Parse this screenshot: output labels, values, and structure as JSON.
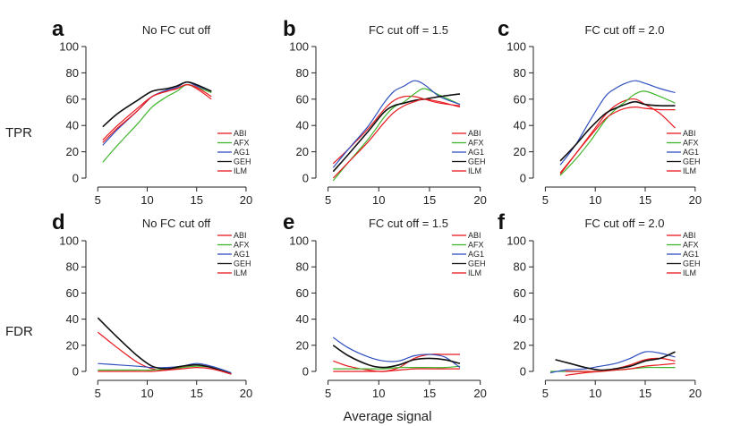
{
  "figure": {
    "row_labels": [
      "TPR",
      "FDR"
    ],
    "shared_xlabel": "Average signal"
  },
  "colors": {
    "ABI": "#e8191e",
    "AFX": "#3fb52c",
    "AG1": "#2f4fbf",
    "GEH": "#111111",
    "ILM": "#e8191e"
  },
  "chart_data": [
    {
      "type": "line",
      "letter": "a",
      "title": "No FC cut off",
      "ylabel": "TPR",
      "xlim": [
        5,
        20
      ],
      "ylim": [
        0,
        100
      ],
      "xticks": [
        5,
        10,
        15,
        20
      ],
      "yticks": [
        0,
        20,
        40,
        60,
        80,
        100
      ],
      "legend": "bottom-right",
      "series": [
        {
          "name": "ABI",
          "x": [
            5.5,
            7,
            9,
            10.5,
            12,
            13,
            14,
            15,
            16.5
          ],
          "y": [
            29,
            40,
            53,
            62,
            66,
            68,
            71,
            68,
            60
          ]
        },
        {
          "name": "AFX",
          "x": [
            5.5,
            7,
            9,
            10.5,
            12,
            13,
            14,
            15,
            16.5
          ],
          "y": [
            12,
            25,
            41,
            54,
            62,
            66,
            71,
            69,
            65
          ]
        },
        {
          "name": "AG1",
          "x": [
            5.5,
            7,
            9,
            10.5,
            12,
            13,
            14,
            15,
            16.5
          ],
          "y": [
            25,
            37,
            51,
            62,
            67,
            69,
            73,
            70,
            66
          ]
        },
        {
          "name": "GEH",
          "x": [
            5.5,
            7,
            9,
            10.5,
            12,
            13,
            14,
            15,
            16.5
          ],
          "y": [
            39,
            49,
            59,
            66,
            68,
            70,
            73,
            71,
            66
          ]
        },
        {
          "name": "ILM",
          "x": [
            5.5,
            7,
            9,
            10.5,
            12,
            13,
            14,
            15,
            16.5
          ],
          "y": [
            27,
            38,
            51,
            62,
            66,
            68,
            71,
            69,
            62
          ]
        }
      ]
    },
    {
      "type": "line",
      "letter": "b",
      "title": "FC cut off = 1.5",
      "ylabel": "",
      "xlim": [
        5,
        20
      ],
      "ylim": [
        0,
        100
      ],
      "xticks": [
        5,
        10,
        15,
        20
      ],
      "yticks": [
        0,
        20,
        40,
        60,
        80,
        100
      ],
      "legend": "bottom-right",
      "series": [
        {
          "name": "ABI",
          "x": [
            5.5,
            7,
            9,
            10.5,
            11.5,
            12.5,
            13.5,
            14.5,
            16,
            18
          ],
          "y": [
            11,
            22,
            38,
            52,
            59,
            62,
            62,
            60,
            57,
            55
          ]
        },
        {
          "name": "AFX",
          "x": [
            5.5,
            7,
            9,
            10.5,
            11.5,
            12.5,
            13.5,
            14.5,
            16,
            18
          ],
          "y": [
            -2,
            12,
            30,
            46,
            54,
            58,
            64,
            68,
            63,
            56
          ]
        },
        {
          "name": "AG1",
          "x": [
            5.5,
            7,
            9,
            10.5,
            11.5,
            12.5,
            13.5,
            14.5,
            16,
            18
          ],
          "y": [
            8,
            22,
            40,
            57,
            66,
            70,
            74,
            71,
            62,
            56
          ]
        },
        {
          "name": "GEH",
          "x": [
            5.5,
            7,
            9,
            10.5,
            11.5,
            12.5,
            13.5,
            14.5,
            16,
            18
          ],
          "y": [
            5,
            18,
            36,
            50,
            55,
            57,
            59,
            60,
            62,
            64
          ]
        },
        {
          "name": "ILM",
          "x": [
            5.5,
            7,
            9,
            10.5,
            11.5,
            12.5,
            13.5,
            14.5,
            16,
            18
          ],
          "y": [
            0,
            12,
            28,
            42,
            50,
            55,
            58,
            60,
            58,
            54
          ]
        }
      ]
    },
    {
      "type": "line",
      "letter": "c",
      "title": "FC cut off = 2.0",
      "ylabel": "",
      "xlim": [
        5,
        20
      ],
      "ylim": [
        0,
        100
      ],
      "xticks": [
        5,
        10,
        15,
        20
      ],
      "yticks": [
        0,
        20,
        40,
        60,
        80,
        100
      ],
      "legend": "bottom-right",
      "series": [
        {
          "name": "ABI",
          "x": [
            6.5,
            8,
            9.5,
            11,
            12,
            13,
            14,
            15,
            16.5,
            18
          ],
          "y": [
            3,
            18,
            33,
            48,
            55,
            59,
            60,
            56,
            49,
            38
          ]
        },
        {
          "name": "AFX",
          "x": [
            6.5,
            8,
            9.5,
            11,
            12,
            13,
            14,
            15,
            16.5,
            18
          ],
          "y": [
            2,
            14,
            28,
            44,
            52,
            58,
            64,
            66,
            62,
            57
          ]
        },
        {
          "name": "AG1",
          "x": [
            6.5,
            8,
            9.5,
            11,
            12,
            13,
            14,
            15,
            16.5,
            18
          ],
          "y": [
            10,
            25,
            44,
            62,
            68,
            72,
            74,
            72,
            68,
            65
          ]
        },
        {
          "name": "GEH",
          "x": [
            6.5,
            8,
            9.5,
            11,
            12,
            13,
            14,
            15,
            16.5,
            18
          ],
          "y": [
            13,
            25,
            38,
            49,
            53,
            56,
            58,
            56,
            55,
            55
          ]
        },
        {
          "name": "ILM",
          "x": [
            6.5,
            8,
            9.5,
            11,
            12,
            13,
            14,
            15,
            16.5,
            18
          ],
          "y": [
            4,
            18,
            32,
            45,
            50,
            53,
            54,
            53,
            52,
            52
          ]
        }
      ]
    },
    {
      "type": "line",
      "letter": "d",
      "title": "No FC cut off",
      "ylabel": "FDR",
      "xlim": [
        5,
        20
      ],
      "ylim": [
        0,
        100
      ],
      "xticks": [
        5,
        10,
        15,
        20
      ],
      "yticks": [
        0,
        20,
        40,
        60,
        80,
        100
      ],
      "legend": "top-right",
      "series": [
        {
          "name": "ABI",
          "x": [
            5,
            7,
            9,
            10.5,
            12,
            13.5,
            15,
            16.5,
            18.5
          ],
          "y": [
            30,
            18,
            7,
            2,
            1,
            3,
            5,
            3,
            -2
          ]
        },
        {
          "name": "AFX",
          "x": [
            5,
            7,
            9,
            10.5,
            12,
            13.5,
            15,
            16.5,
            18.5
          ],
          "y": [
            1,
            1,
            1,
            1,
            2,
            3,
            4,
            3,
            -2
          ]
        },
        {
          "name": "AG1",
          "x": [
            5,
            7,
            9,
            10.5,
            12,
            13.5,
            15,
            16.5,
            18.5
          ],
          "y": [
            6,
            5,
            4,
            3,
            3,
            4,
            6,
            4,
            -1
          ]
        },
        {
          "name": "GEH",
          "x": [
            5,
            7,
            9,
            10.5,
            12,
            13.5,
            15,
            16.5,
            18.5
          ],
          "y": [
            41,
            26,
            12,
            4,
            2,
            4,
            5,
            3,
            -2
          ]
        },
        {
          "name": "ILM",
          "x": [
            5,
            7,
            9,
            10.5,
            12,
            13.5,
            15,
            16.5,
            18.5
          ],
          "y": [
            0,
            0,
            0,
            0,
            1,
            2,
            3,
            2,
            -2
          ]
        }
      ]
    },
    {
      "type": "line",
      "letter": "e",
      "title": "FC cut off = 1.5",
      "ylabel": "",
      "xlim": [
        5,
        20
      ],
      "ylim": [
        0,
        100
      ],
      "xticks": [
        5,
        10,
        15,
        20
      ],
      "yticks": [
        0,
        20,
        40,
        60,
        80,
        100
      ],
      "legend": "top-right",
      "series": [
        {
          "name": "ABI",
          "x": [
            5.5,
            7,
            9,
            10.5,
            12,
            13.5,
            15,
            16.5,
            18
          ],
          "y": [
            8,
            4,
            1,
            0,
            3,
            10,
            13,
            13,
            13
          ]
        },
        {
          "name": "AFX",
          "x": [
            5.5,
            7,
            9,
            10.5,
            12,
            13.5,
            15,
            16.5,
            18
          ],
          "y": [
            2,
            2,
            2,
            2,
            3,
            3,
            3,
            3,
            4
          ]
        },
        {
          "name": "AG1",
          "x": [
            5.5,
            7,
            9,
            10.5,
            12,
            13.5,
            15,
            16.5,
            18
          ],
          "y": [
            26,
            18,
            11,
            8,
            8,
            12,
            13,
            11,
            3
          ]
        },
        {
          "name": "GEH",
          "x": [
            5.5,
            7,
            9,
            10.5,
            12,
            13.5,
            15,
            16.5,
            18
          ],
          "y": [
            20,
            12,
            5,
            3,
            5,
            9,
            10,
            9,
            6
          ]
        },
        {
          "name": "ILM",
          "x": [
            5.5,
            7,
            9,
            10.5,
            12,
            13.5,
            15,
            16.5,
            18
          ],
          "y": [
            0,
            0,
            0,
            0,
            1,
            2,
            2,
            2,
            2
          ]
        }
      ]
    },
    {
      "type": "line",
      "letter": "f",
      "title": "FC cut off = 2.0",
      "ylabel": "",
      "xlim": [
        5,
        20
      ],
      "ylim": [
        0,
        100
      ],
      "xticks": [
        5,
        10,
        15,
        20
      ],
      "yticks": [
        0,
        20,
        40,
        60,
        80,
        100
      ],
      "legend": "top-right",
      "series": [
        {
          "name": "ABI",
          "x": [
            7,
            9,
            10.5,
            12,
            13.5,
            15,
            16.5,
            18
          ],
          "y": [
            -3,
            -1,
            0,
            2,
            5,
            9,
            10,
            8
          ]
        },
        {
          "name": "AFX",
          "x": [
            5.5,
            7,
            9,
            10.5,
            12,
            13.5,
            15,
            16.5,
            18
          ],
          "y": [
            0,
            0,
            0,
            0,
            1,
            2,
            3,
            3,
            3
          ]
        },
        {
          "name": "AG1",
          "x": [
            5.5,
            7,
            9,
            10.5,
            12,
            13.5,
            15,
            16.5,
            18
          ],
          "y": [
            -1,
            1,
            2,
            4,
            6,
            10,
            15,
            14,
            11
          ]
        },
        {
          "name": "GEH",
          "x": [
            6,
            7.5,
            9,
            10.5,
            12,
            13.5,
            15,
            16.5,
            18
          ],
          "y": [
            9,
            6,
            3,
            1,
            2,
            4,
            8,
            10,
            15
          ]
        },
        {
          "name": "ILM",
          "x": [
            7,
            9,
            10.5,
            12,
            13.5,
            15,
            16.5,
            18
          ],
          "y": [
            0,
            0,
            0,
            1,
            2,
            4,
            5,
            6
          ]
        }
      ]
    }
  ]
}
